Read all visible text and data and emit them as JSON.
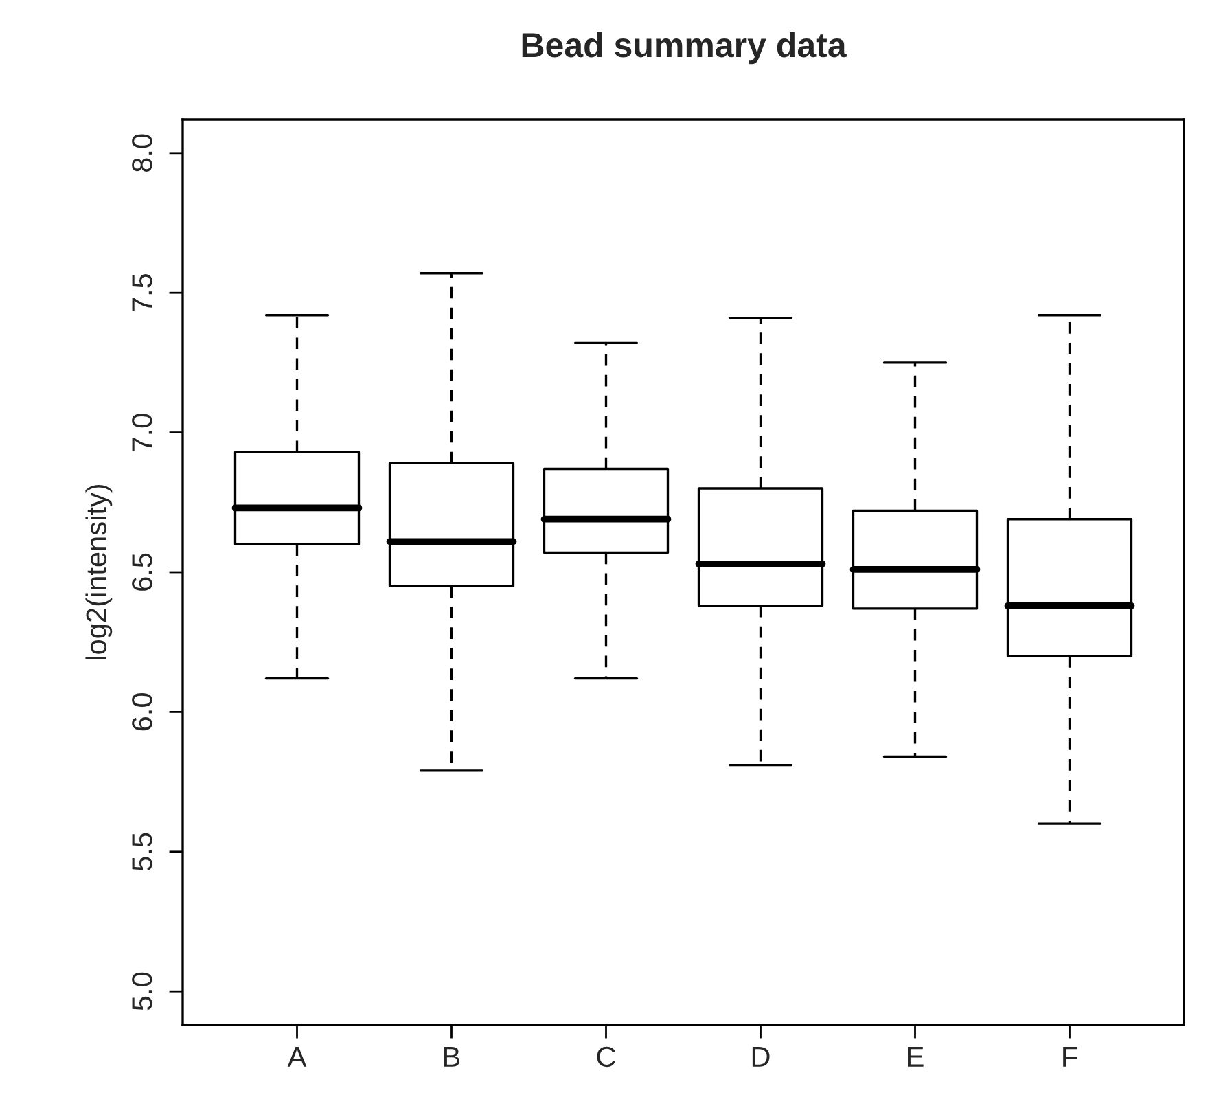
{
  "chart_data": {
    "type": "box",
    "title": "Bead summary data",
    "ylabel": "log2(intensity)",
    "categories": [
      "A",
      "B",
      "C",
      "D",
      "E",
      "F"
    ],
    "boxes": [
      {
        "low": 6.12,
        "q1": 6.6,
        "median": 6.73,
        "q3": 6.93,
        "high": 7.42
      },
      {
        "low": 5.79,
        "q1": 6.45,
        "median": 6.61,
        "q3": 6.89,
        "high": 7.57
      },
      {
        "low": 6.12,
        "q1": 6.57,
        "median": 6.69,
        "q3": 6.87,
        "high": 7.32
      },
      {
        "low": 5.81,
        "q1": 6.38,
        "median": 6.53,
        "q3": 6.8,
        "high": 7.41
      },
      {
        "low": 5.84,
        "q1": 6.37,
        "median": 6.51,
        "q3": 6.72,
        "high": 7.25
      },
      {
        "low": 5.6,
        "q1": 6.2,
        "median": 6.38,
        "q3": 6.69,
        "high": 7.42
      }
    ],
    "ylim": [
      4.88,
      8.12
    ],
    "yticks": [
      {
        "value": 5,
        "label": "5.0"
      },
      {
        "value": 5.5,
        "label": "5.5"
      },
      {
        "value": 6,
        "label": "6.0"
      },
      {
        "value": 6.5,
        "label": "6.5"
      },
      {
        "value": 7,
        "label": "7.0"
      },
      {
        "value": 7.5,
        "label": "7.5"
      },
      {
        "value": 8,
        "label": "8.0"
      }
    ],
    "grid": false,
    "legend": false
  }
}
